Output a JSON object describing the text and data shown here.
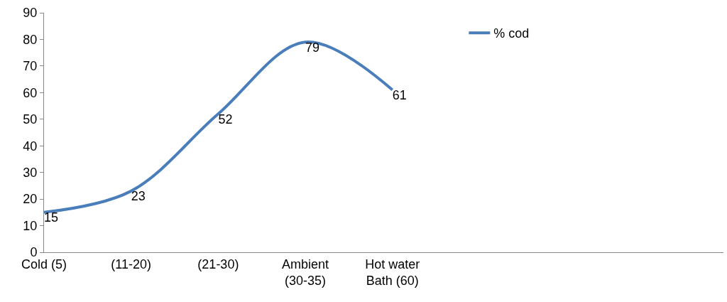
{
  "chart_data": {
    "type": "line",
    "categories": [
      "Cold (5)",
      "(11-20)",
      "(21-30)",
      "Ambient\n(30-35)",
      "Hot water\nBath (60)",
      null,
      null,
      null
    ],
    "series": [
      {
        "name": "% cod",
        "color": "#4a7ebb",
        "values": [
          15,
          23,
          52,
          79,
          61,
          null,
          null,
          null
        ]
      }
    ],
    "ylim": [
      0,
      90
    ],
    "yticks": [
      0,
      10,
      20,
      30,
      40,
      50,
      60,
      70,
      80,
      90
    ],
    "data_labels": true,
    "legend": "top right",
    "marker": "none",
    "line_style": "solid"
  }
}
